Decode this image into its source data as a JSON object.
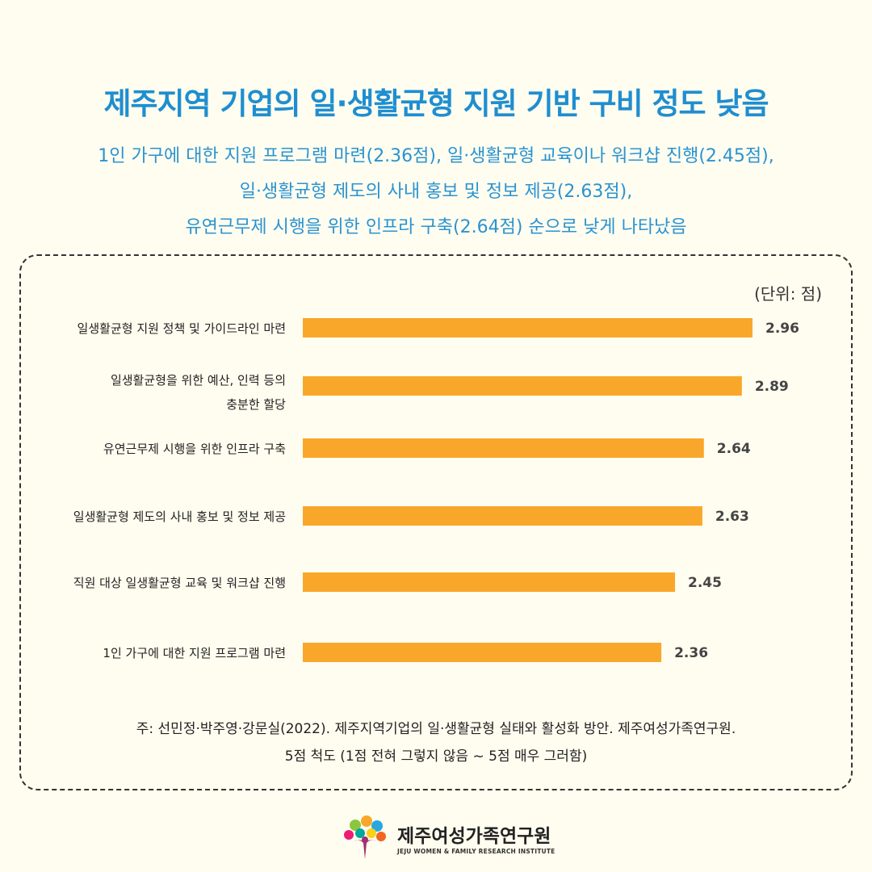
{
  "header": {
    "title": "제주지역 기업의 일·생활균형 지원 기반 구비 정도 낮음",
    "subtitle_lines": [
      "1인 가구에 대한 지원 프로그램 마련(2.36점), 일·생활균형 교육이나 워크샵 진행(2.45점),",
      "일·생활균형 제도의 사내 홍보 및 정보 제공(2.63점),",
      "유연근무제 시행을 위한 인프라 구축(2.64점) 순으로 낮게 나타났음"
    ]
  },
  "chart_data": {
    "type": "bar",
    "orientation": "horizontal",
    "unit_label": "(단위: 점)",
    "categories": [
      [
        "일생활균형 지원 정책 및 가이드라인 마련"
      ],
      [
        "일생활균형을 위한 예산, 인력 등의",
        "충분한 할당"
      ],
      [
        "유연근무제 시행을 위한 인프라 구축"
      ],
      [
        "일생활균형 제도의 사내 홍보 및 정보 제공"
      ],
      [
        "직원 대상 일생활균형 교육 및 워크샵 진행"
      ],
      [
        "1인 가구에 대한 지원 프로그램 마련"
      ]
    ],
    "values": [
      2.96,
      2.89,
      2.64,
      2.63,
      2.45,
      2.36
    ],
    "value_labels": [
      "2.96",
      "2.89",
      "2.64",
      "2.63",
      "2.45",
      "2.36"
    ],
    "xlim": [
      0,
      2.96
    ],
    "bar_color": "#f9a72a",
    "grid": false
  },
  "footer": {
    "note_lines": [
      "주: 선민정·박주영·강문실(2022). 제주지역기업의 일·생활균형 실태와 활성화 방안. 제주여성가족연구원.",
      "5점 척도 (1점 전혀 그렇지 않음 ~ 5점 매우 그러함)"
    ]
  },
  "logo": {
    "name": "제주여성가족연구원",
    "english_name": "JEJU WOMEN & FAMILY RESEARCH INSTITUTE"
  }
}
